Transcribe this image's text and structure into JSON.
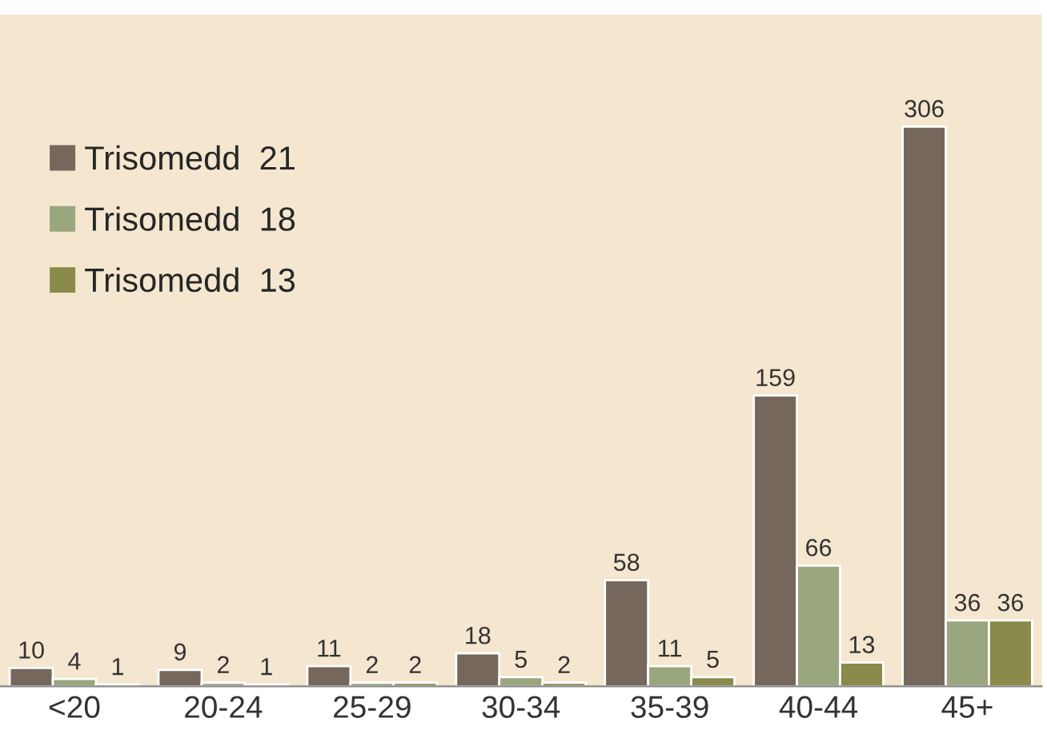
{
  "chart_data": {
    "type": "bar",
    "categories": [
      "<20",
      "20-24",
      "25-29",
      "30-34",
      "35-39",
      "40-44",
      "45+"
    ],
    "series": [
      {
        "name": "Trisomedd  21",
        "color": "#76675c",
        "values": [
          10,
          9,
          11,
          18,
          58,
          159,
          306
        ]
      },
      {
        "name": "Trisomedd  18",
        "color": "#9aa67e",
        "values": [
          4,
          2,
          2,
          5,
          11,
          66,
          36
        ]
      },
      {
        "name": "Trisomedd  13",
        "color": "#8a8a4a",
        "values": [
          1,
          1,
          2,
          2,
          5,
          13,
          36
        ]
      }
    ],
    "data_labels": true,
    "legend": "top left",
    "grid": false
  }
}
